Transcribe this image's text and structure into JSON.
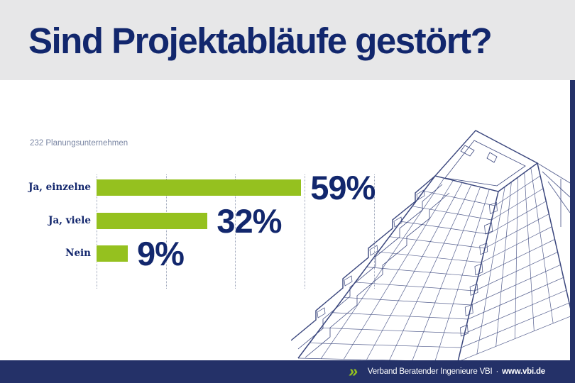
{
  "header": {
    "title": "Sind Projektabläufe gestört?"
  },
  "chart_data": {
    "type": "bar",
    "orientation": "horizontal",
    "title": "Sind Projektabläufe gestört?",
    "subtitle": "232 Planungsunternehmen",
    "categories": [
      "Ja, einzelne",
      "Ja, viele",
      "Nein"
    ],
    "values": [
      59,
      32,
      9
    ],
    "value_labels": [
      "59%",
      "32%",
      "9%"
    ],
    "unit": "%",
    "xlim": [
      0,
      80
    ],
    "gridlines_percent": [
      0,
      20,
      40,
      60,
      80
    ],
    "grid_style": "dotted-vertical",
    "bar_color": "#95c11f",
    "label_color": "#12276d",
    "legend": false
  },
  "illustration": {
    "name": "wireframe-building",
    "stroke_color": "#3a467d"
  },
  "footer": {
    "chevron_icon": "»",
    "org": "Verband Beratender Ingenieure VBI",
    "separator": "·",
    "website": "www.vbi.de"
  },
  "colors": {
    "accent_green": "#95c11f",
    "brand_navy": "#243168",
    "title_navy": "#12276d",
    "header_gray": "#e7e7e8",
    "subtitle_gray": "#7b87a4"
  }
}
